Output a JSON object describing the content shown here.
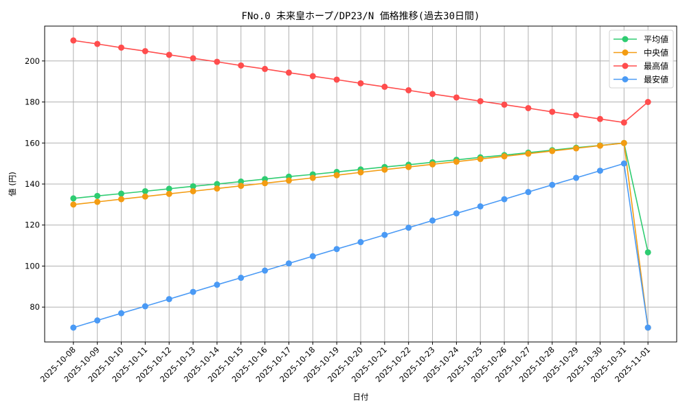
{
  "chart_data": {
    "type": "line",
    "title": "FNo.0 未来皇ホープ/DP23/N 価格推移(過去30日間)",
    "xlabel": "日付",
    "ylabel": "値 (円)",
    "x": [
      "2025-10-08",
      "2025-10-09",
      "2025-10-10",
      "2025-10-11",
      "2025-10-12",
      "2025-10-13",
      "2025-10-14",
      "2025-10-15",
      "2025-10-16",
      "2025-10-17",
      "2025-10-18",
      "2025-10-19",
      "2025-10-20",
      "2025-10-21",
      "2025-10-22",
      "2025-10-23",
      "2025-10-24",
      "2025-10-25",
      "2025-10-26",
      "2025-10-27",
      "2025-10-28",
      "2025-10-29",
      "2025-10-30",
      "2025-10-31",
      "2025-11-01"
    ],
    "series": [
      {
        "name": "平均値",
        "color": "#2ecc71",
        "values": [
          133.0,
          134.2,
          135.3,
          136.5,
          137.7,
          138.9,
          140.0,
          141.2,
          142.4,
          143.6,
          144.7,
          145.9,
          147.1,
          148.3,
          149.4,
          150.6,
          151.8,
          153.0,
          154.1,
          155.3,
          156.5,
          157.7,
          158.8,
          160.0,
          106.7
        ]
      },
      {
        "name": "中央値",
        "color": "#f39c12",
        "values": [
          130.0,
          131.3,
          132.6,
          133.9,
          135.2,
          136.5,
          137.8,
          139.1,
          140.4,
          141.7,
          143.0,
          144.3,
          145.7,
          147.0,
          148.3,
          149.6,
          150.9,
          152.2,
          153.5,
          154.8,
          156.1,
          157.4,
          158.7,
          160.0,
          70.0
        ]
      },
      {
        "name": "最高値",
        "color": "#ff4d4d",
        "values": [
          210.0,
          208.3,
          206.5,
          204.8,
          203.0,
          201.3,
          199.6,
          197.8,
          196.1,
          194.3,
          192.6,
          190.9,
          189.1,
          187.4,
          185.7,
          183.9,
          182.2,
          180.4,
          178.7,
          177.0,
          175.2,
          173.5,
          171.7,
          170.0,
          180.0
        ]
      },
      {
        "name": "最安値",
        "color": "#4a9af5",
        "values": [
          70.0,
          73.5,
          77.0,
          80.4,
          83.9,
          87.4,
          90.9,
          94.3,
          97.8,
          101.3,
          104.8,
          108.3,
          111.7,
          115.2,
          118.7,
          122.2,
          125.7,
          129.1,
          132.6,
          136.1,
          139.6,
          143.0,
          146.5,
          150.0,
          70.0
        ]
      }
    ],
    "yticks": [
      80,
      100,
      120,
      140,
      160,
      180,
      200
    ],
    "ylim": [
      63.0,
      217.0
    ],
    "grid": true,
    "legend_position": "upper right"
  }
}
